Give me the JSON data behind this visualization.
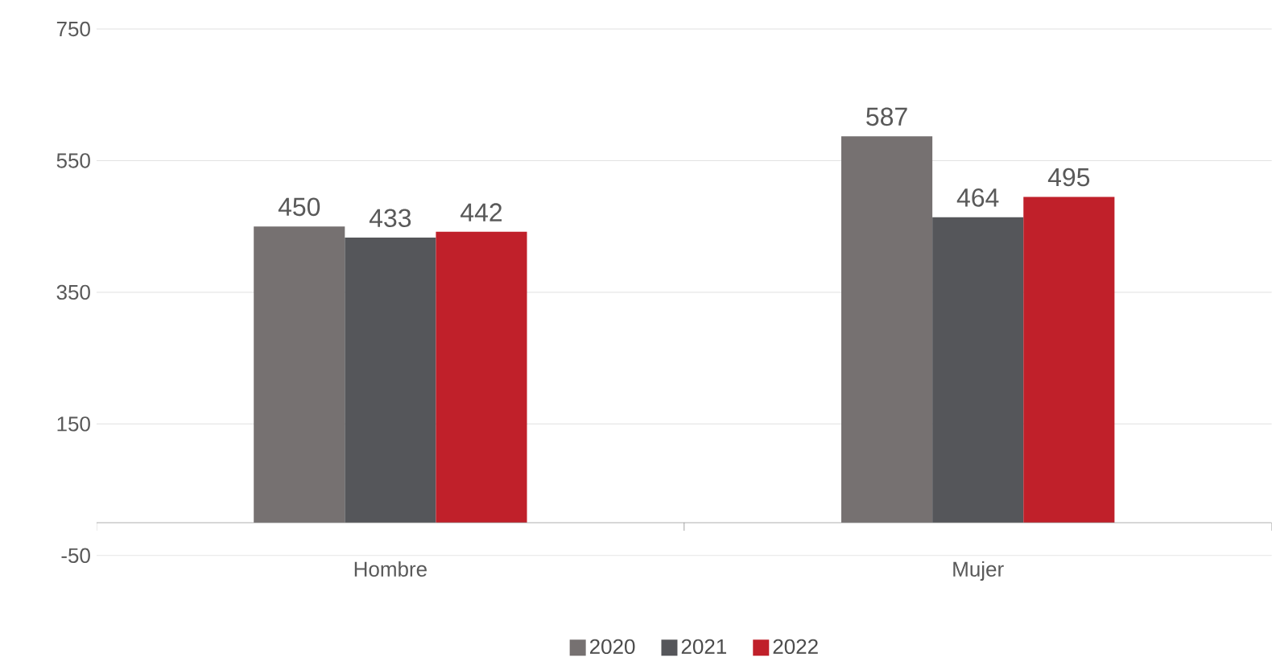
{
  "chart_data": {
    "type": "bar",
    "categories": [
      "Hombre",
      "Mujer"
    ],
    "series": [
      {
        "name": "2020",
        "color": "#767171",
        "values": [
          450,
          587
        ]
      },
      {
        "name": "2021",
        "color": "#55565a",
        "values": [
          433,
          464
        ]
      },
      {
        "name": "2022",
        "color": "#c0202a",
        "values": [
          442,
          495
        ]
      }
    ],
    "ylim": [
      -50,
      750
    ],
    "yticks": [
      -50,
      150,
      350,
      550,
      750
    ],
    "grid": "y",
    "legend": "bottom",
    "data_labels": true
  }
}
